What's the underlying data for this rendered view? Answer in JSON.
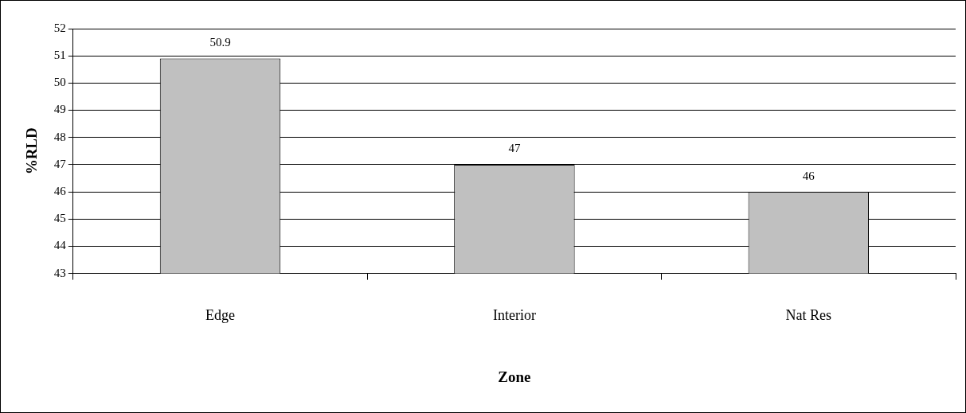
{
  "chart_data": {
    "type": "bar",
    "xlabel": "Zone",
    "ylabel": "%RLD",
    "categories": [
      "Edge",
      "Interior",
      "Nat Res"
    ],
    "values": [
      50.9,
      47,
      46
    ],
    "color": "#c0c0c0",
    "ylim": [
      43,
      52
    ],
    "yticks": [
      43,
      44,
      45,
      46,
      47,
      48,
      49,
      50,
      51,
      52
    ],
    "grid": "y",
    "data_labels": true,
    "legend": false
  }
}
